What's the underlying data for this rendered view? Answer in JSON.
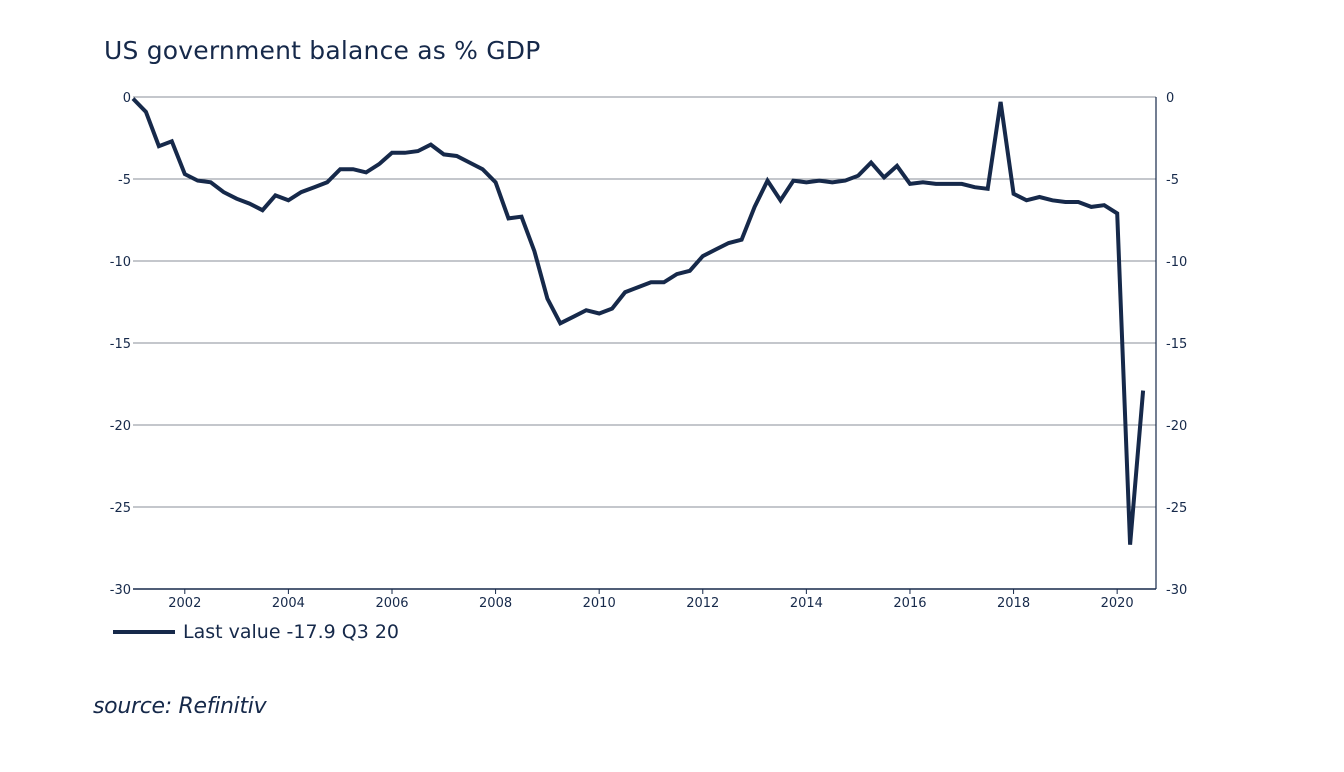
{
  "chart_data": {
    "type": "line",
    "title": "US government balance as % GDP",
    "xlabel": "",
    "ylabel": "",
    "ylim": [
      -30,
      0
    ],
    "xlim": [
      2001.0,
      2020.75
    ],
    "y_ticks": [
      "0",
      "-5",
      "-10",
      "-15",
      "-20",
      "-25",
      "-30"
    ],
    "y_tick_values": [
      0,
      -5,
      -10,
      -15,
      -20,
      -25,
      -30
    ],
    "x_ticks": [
      "2002",
      "2004",
      "2006",
      "2008",
      "2010",
      "2012",
      "2014",
      "2016",
      "2018",
      "2020"
    ],
    "x_tick_values": [
      2002,
      2004,
      2006,
      2008,
      2010,
      2012,
      2014,
      2016,
      2018,
      2020
    ],
    "grid": true,
    "dual_y_axis": true,
    "series": [
      {
        "name": "Last value -17.9 Q3 20",
        "color": "#16294a",
        "x": [
          "2001-Q1",
          "2001-Q2",
          "2001-Q3",
          "2001-Q4",
          "2002-Q1",
          "2002-Q2",
          "2002-Q3",
          "2002-Q4",
          "2003-Q1",
          "2003-Q2",
          "2003-Q3",
          "2003-Q4",
          "2004-Q1",
          "2004-Q2",
          "2004-Q3",
          "2004-Q4",
          "2005-Q1",
          "2005-Q2",
          "2005-Q3",
          "2005-Q4",
          "2006-Q1",
          "2006-Q2",
          "2006-Q3",
          "2006-Q4",
          "2007-Q1",
          "2007-Q2",
          "2007-Q3",
          "2007-Q4",
          "2008-Q1",
          "2008-Q2",
          "2008-Q3",
          "2008-Q4",
          "2009-Q1",
          "2009-Q2",
          "2009-Q3",
          "2009-Q4",
          "2010-Q1",
          "2010-Q2",
          "2010-Q3",
          "2010-Q4",
          "2011-Q1",
          "2011-Q2",
          "2011-Q3",
          "2011-Q4",
          "2012-Q1",
          "2012-Q2",
          "2012-Q3",
          "2012-Q4",
          "2013-Q1",
          "2013-Q2",
          "2013-Q3",
          "2013-Q4",
          "2014-Q1",
          "2014-Q2",
          "2014-Q3",
          "2014-Q4",
          "2015-Q1",
          "2015-Q2",
          "2015-Q3",
          "2015-Q4",
          "2016-Q1",
          "2016-Q2",
          "2016-Q3",
          "2016-Q4",
          "2017-Q1",
          "2017-Q2",
          "2017-Q3",
          "2017-Q4",
          "2018-Q1",
          "2018-Q2",
          "2018-Q3",
          "2018-Q4",
          "2019-Q1",
          "2019-Q2",
          "2019-Q3",
          "2019-Q4",
          "2020-Q1",
          "2020-Q2",
          "2020-Q3"
        ],
        "values": [
          -0.1,
          -0.9,
          -3.0,
          -2.7,
          -4.7,
          -5.1,
          -5.2,
          -5.8,
          -6.2,
          -6.5,
          -6.9,
          -6.0,
          -6.3,
          -5.8,
          -5.5,
          -5.2,
          -4.4,
          -4.4,
          -4.6,
          -4.1,
          -3.4,
          -3.4,
          -3.3,
          -2.9,
          -3.5,
          -3.6,
          -4.0,
          -4.4,
          -5.2,
          -7.4,
          -7.3,
          -9.4,
          -12.3,
          -13.8,
          -13.4,
          -13.0,
          -13.2,
          -12.9,
          -11.9,
          -11.6,
          -11.3,
          -11.3,
          -10.8,
          -10.6,
          -9.7,
          -9.3,
          -8.9,
          -8.7,
          -6.7,
          -5.1,
          -6.3,
          -5.1,
          -5.2,
          -5.1,
          -5.2,
          -5.1,
          -4.8,
          -4.0,
          -4.9,
          -4.2,
          -5.3,
          -5.2,
          -5.3,
          -5.3,
          -5.3,
          -5.5,
          -5.6,
          -0.3,
          -5.9,
          -6.3,
          -6.1,
          -6.3,
          -6.4,
          -6.4,
          -6.7,
          -6.6,
          -7.1,
          -27.3,
          -17.9
        ]
      }
    ]
  },
  "legend": {
    "label": "Last value -17.9 Q3 20"
  },
  "source": "source: Refinitiv"
}
